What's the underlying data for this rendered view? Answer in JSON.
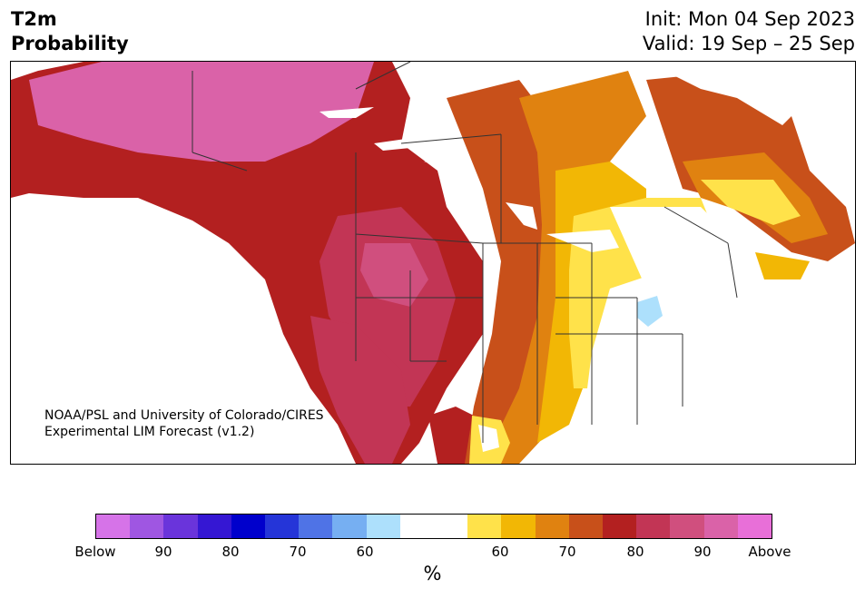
{
  "title": {
    "left_line1": "T2m",
    "left_line2": "Probability",
    "init": "Init: Mon 04 Sep 2023",
    "valid": "Valid: 19 Sep – 25 Sep"
  },
  "map": {
    "credit_line1": "NOAA/PSL and University of Colorado/CIRES",
    "credit_line2": "Experimental LIM Forecast (v1.2)",
    "region": "North America",
    "hot_colors": [
      "#ffe24a",
      "#f2b705",
      "#e08210",
      "#c8501a",
      "#b32020",
      "#c23555",
      "#d04f7e",
      "#da62a8",
      "#e86fd8"
    ],
    "cold_colors": [
      "#ade0fc"
    ]
  },
  "colorbar": {
    "colors": [
      "#d673e8",
      "#9f56e2",
      "#6a34db",
      "#3517d3",
      "#0000cc",
      "#2535d8",
      "#4f73e6",
      "#76aff2",
      "#ade0fc",
      "#ffffff",
      "#ffffff",
      "#ffe24a",
      "#f2b705",
      "#e08210",
      "#c8501a",
      "#b32020",
      "#c23555",
      "#d04f7e",
      "#da62a8",
      "#e86fd8"
    ],
    "tick_labels": [
      "Below",
      "90",
      "80",
      "70",
      "60",
      "60",
      "70",
      "80",
      "90",
      "Above"
    ],
    "units": "%"
  }
}
